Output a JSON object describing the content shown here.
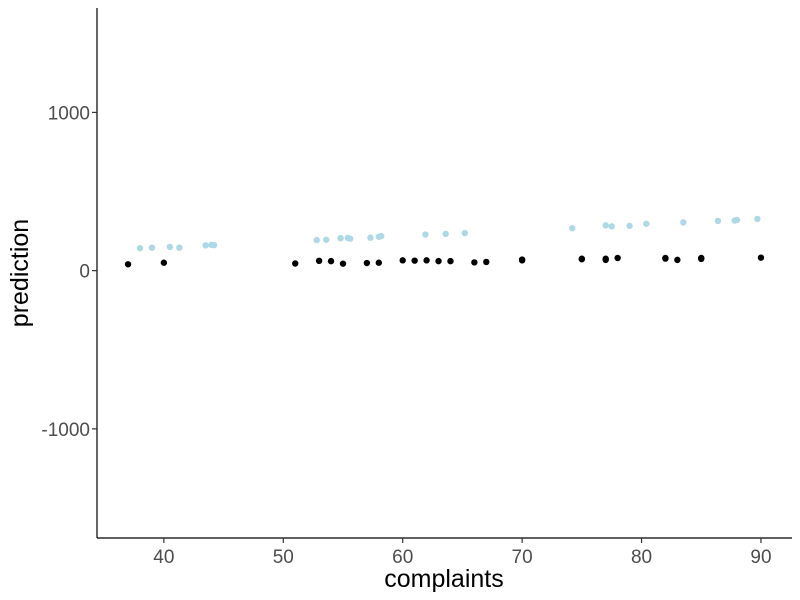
{
  "chart_data": {
    "type": "scatter",
    "title": "",
    "xlabel": "complaints",
    "ylabel": "prediction",
    "xlim": [
      34.4,
      92.6
    ],
    "ylim": [
      -1690,
      1660
    ],
    "x_ticks": [
      40,
      50,
      60,
      70,
      80,
      90
    ],
    "y_ticks": [
      -1000,
      0,
      1000
    ],
    "x_tick_labels": [
      "40",
      "50",
      "60",
      "70",
      "80",
      "90"
    ],
    "y_tick_labels": [
      "-1000",
      "0",
      "1000"
    ],
    "grid": false,
    "legend": "none",
    "series": [
      {
        "color": "#add8e6",
        "points": [
          [
            38,
            142
          ],
          [
            39,
            145
          ],
          [
            40.5,
            150
          ],
          [
            41.3,
            145
          ],
          [
            43.5,
            160
          ],
          [
            44,
            163
          ],
          [
            44.2,
            161
          ],
          [
            52.8,
            193
          ],
          [
            53.6,
            195
          ],
          [
            54.8,
            205
          ],
          [
            55.4,
            207
          ],
          [
            55.6,
            202
          ],
          [
            57.3,
            208
          ],
          [
            58,
            214
          ],
          [
            58.2,
            218
          ],
          [
            61.9,
            228
          ],
          [
            63.6,
            232
          ],
          [
            65.2,
            237
          ],
          [
            74.2,
            268
          ],
          [
            77,
            286
          ],
          [
            77.5,
            280
          ],
          [
            79,
            283
          ],
          [
            80.4,
            296
          ],
          [
            83.5,
            305
          ],
          [
            86.4,
            314
          ],
          [
            87.8,
            317
          ],
          [
            88,
            320
          ],
          [
            89.7,
            327
          ]
        ]
      },
      {
        "color": "#000000",
        "points": [
          [
            37,
            40
          ],
          [
            40,
            50
          ],
          [
            51,
            45
          ],
          [
            53,
            62
          ],
          [
            54,
            60
          ],
          [
            55,
            44
          ],
          [
            57,
            48
          ],
          [
            58,
            50
          ],
          [
            60,
            65
          ],
          [
            61,
            63
          ],
          [
            62,
            65
          ],
          [
            63,
            60
          ],
          [
            64,
            60
          ],
          [
            66,
            52
          ],
          [
            67,
            55
          ],
          [
            70,
            65
          ],
          [
            70,
            70
          ],
          [
            75,
            72
          ],
          [
            75,
            75
          ],
          [
            77,
            68
          ],
          [
            77,
            75
          ],
          [
            78,
            80
          ],
          [
            82,
            76
          ],
          [
            82,
            80
          ],
          [
            83,
            68
          ],
          [
            85,
            74
          ],
          [
            85,
            80
          ],
          [
            90,
            82
          ]
        ]
      }
    ]
  }
}
